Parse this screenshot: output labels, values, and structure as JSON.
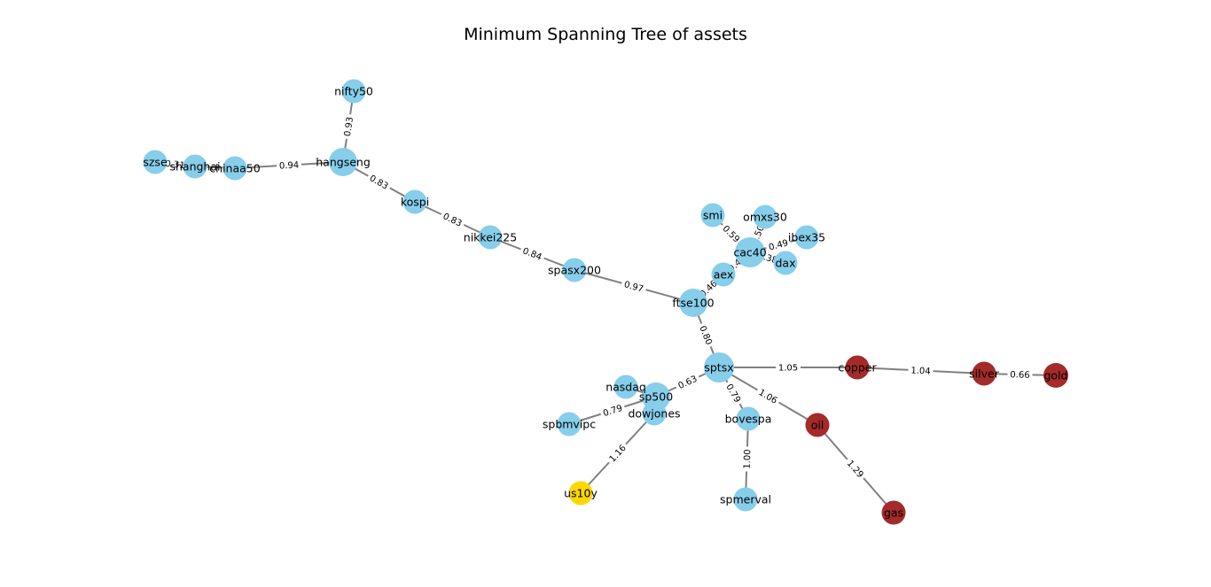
{
  "title": "Minimum Spanning Tree of assets",
  "colors": {
    "equity": "#87CEEB",
    "commodity": "#A52A2A",
    "bond": "#FFD700",
    "edge": "#808080",
    "label_bg": "#ffffff"
  },
  "nodes": [
    {
      "id": "nifty50",
      "group": "equity"
    },
    {
      "id": "szse",
      "group": "equity"
    },
    {
      "id": "shanghai",
      "group": "equity"
    },
    {
      "id": "chinaa50",
      "group": "equity"
    },
    {
      "id": "hangseng",
      "group": "equity"
    },
    {
      "id": "kospi",
      "group": "equity"
    },
    {
      "id": "nikkei225",
      "group": "equity"
    },
    {
      "id": "spasx200",
      "group": "equity"
    },
    {
      "id": "ftse100",
      "group": "equity"
    },
    {
      "id": "smi",
      "group": "equity"
    },
    {
      "id": "omxs30",
      "group": "equity"
    },
    {
      "id": "ibex35",
      "group": "equity"
    },
    {
      "id": "cac40",
      "group": "equity"
    },
    {
      "id": "dax",
      "group": "equity"
    },
    {
      "id": "aex",
      "group": "equity"
    },
    {
      "id": "sptsx",
      "group": "equity"
    },
    {
      "id": "nasdaq",
      "group": "equity"
    },
    {
      "id": "sp500",
      "group": "equity"
    },
    {
      "id": "dowjones",
      "group": "equity"
    },
    {
      "id": "spbmvipc",
      "group": "equity"
    },
    {
      "id": "bovespa",
      "group": "equity"
    },
    {
      "id": "spmerval",
      "group": "equity"
    },
    {
      "id": "copper",
      "group": "commodity"
    },
    {
      "id": "silver",
      "group": "commodity"
    },
    {
      "id": "gold",
      "group": "commodity"
    },
    {
      "id": "oil",
      "group": "commodity"
    },
    {
      "id": "gas",
      "group": "commodity"
    },
    {
      "id": "us10y",
      "group": "bond"
    }
  ],
  "edges": [
    {
      "source": "hangseng",
      "target": "nifty50",
      "weight": "0.93"
    },
    {
      "source": "szse",
      "target": "shanghai",
      "weight": "0.31"
    },
    {
      "source": "shanghai",
      "target": "chinaa50",
      "weight": ""
    },
    {
      "source": "chinaa50",
      "target": "hangseng",
      "weight": "0.94"
    },
    {
      "source": "hangseng",
      "target": "kospi",
      "weight": "0.83"
    },
    {
      "source": "kospi",
      "target": "nikkei225",
      "weight": "0.83"
    },
    {
      "source": "nikkei225",
      "target": "spasx200",
      "weight": "0.84"
    },
    {
      "source": "spasx200",
      "target": "ftse100",
      "weight": "0.97"
    },
    {
      "source": "ftse100",
      "target": "aex",
      "weight": "0.46"
    },
    {
      "source": "aex",
      "target": "cac40",
      "weight": "0.43"
    },
    {
      "source": "smi",
      "target": "cac40",
      "weight": "0.59"
    },
    {
      "source": "omxs30",
      "target": "cac40",
      "weight": "0.50"
    },
    {
      "source": "cac40",
      "target": "ibex35",
      "weight": "0.49"
    },
    {
      "source": "cac40",
      "target": "dax",
      "weight": "0.38"
    },
    {
      "source": "ftse100",
      "target": "sptsx",
      "weight": "0.80"
    },
    {
      "source": "sptsx",
      "target": "sp500",
      "weight": "0.63"
    },
    {
      "source": "nasdaq",
      "target": "sp500",
      "weight": ""
    },
    {
      "source": "sp500",
      "target": "dowjones",
      "weight": ""
    },
    {
      "source": "spbmvipc",
      "target": "sp500",
      "weight": "0.79"
    },
    {
      "source": "dowjones",
      "target": "us10y",
      "weight": "1.16"
    },
    {
      "source": "sptsx",
      "target": "bovespa",
      "weight": "0.79"
    },
    {
      "source": "bovespa",
      "target": "spmerval",
      "weight": "1.00"
    },
    {
      "source": "sptsx",
      "target": "copper",
      "weight": "1.05"
    },
    {
      "source": "copper",
      "target": "silver",
      "weight": "1.04"
    },
    {
      "source": "silver",
      "target": "gold",
      "weight": "0.66"
    },
    {
      "source": "sptsx",
      "target": "oil",
      "weight": "1.06"
    },
    {
      "source": "oil",
      "target": "gas",
      "weight": "1.29"
    }
  ]
}
